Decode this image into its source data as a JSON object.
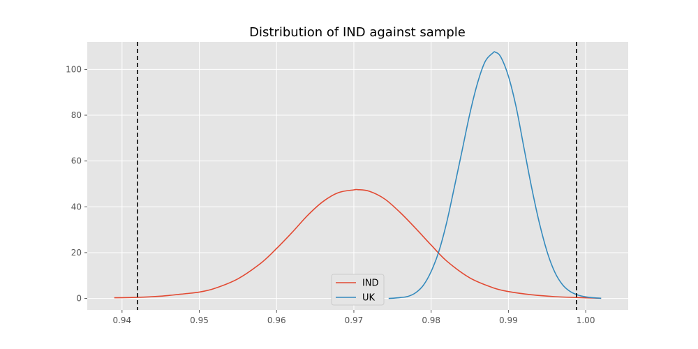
{
  "chart_data": {
    "type": "line",
    "title": "Distribution of IND against sample",
    "xlabel": "",
    "ylabel": "",
    "xlim": [
      0.9355,
      1.0055
    ],
    "ylim": [
      -5,
      112
    ],
    "xticks": [
      0.94,
      0.95,
      0.96,
      0.97,
      0.98,
      0.99,
      1.0
    ],
    "xtick_labels": [
      "0.94",
      "0.95",
      "0.96",
      "0.97",
      "0.98",
      "0.99",
      "1.00"
    ],
    "yticks": [
      0,
      20,
      40,
      60,
      80,
      100
    ],
    "ytick_labels": [
      "0",
      "20",
      "40",
      "60",
      "80",
      "100"
    ],
    "grid": true,
    "legend_position": "lower-center",
    "series": [
      {
        "name": "IND",
        "color": "#E24A33",
        "x": [
          0.939,
          0.942,
          0.945,
          0.948,
          0.95,
          0.952,
          0.955,
          0.958,
          0.96,
          0.962,
          0.964,
          0.966,
          0.968,
          0.97,
          0.9705,
          0.972,
          0.974,
          0.976,
          0.978,
          0.98,
          0.982,
          0.985,
          0.988,
          0.99,
          0.993,
          0.996,
          0.999,
          1.002
        ],
        "y": [
          0.3,
          0.5,
          1.0,
          2.0,
          2.8,
          4.4,
          8.6,
          15.5,
          21.8,
          28.8,
          36.2,
          42.3,
          46.2,
          47.4,
          47.5,
          46.8,
          43.4,
          37.5,
          30.6,
          23.3,
          16.4,
          9.0,
          4.7,
          3.0,
          1.6,
          0.8,
          0.4,
          0.1
        ]
      },
      {
        "name": "UK",
        "color": "#348ABD",
        "x": [
          0.9745,
          0.976,
          0.977,
          0.978,
          0.979,
          0.98,
          0.981,
          0.982,
          0.983,
          0.984,
          0.985,
          0.986,
          0.987,
          0.988,
          0.9883,
          0.989,
          0.99,
          0.991,
          0.992,
          0.993,
          0.994,
          0.995,
          0.996,
          0.997,
          0.998,
          0.999,
          1.0,
          1.001,
          1.002
        ],
        "y": [
          0,
          0.4,
          0.9,
          2.5,
          5.8,
          11.8,
          20.5,
          33.0,
          48.5,
          64.5,
          80.5,
          94.0,
          103.5,
          107.2,
          107.5,
          105.5,
          97.0,
          83.5,
          66.0,
          48.5,
          33.0,
          20.5,
          11.5,
          6.0,
          3.0,
          1.5,
          0.7,
          0.3,
          0.1
        ]
      }
    ],
    "vlines": [
      {
        "x": 0.942,
        "style": "dashed",
        "color": "#000000"
      },
      {
        "x": 0.9988,
        "style": "dashed",
        "color": "#000000"
      }
    ]
  }
}
